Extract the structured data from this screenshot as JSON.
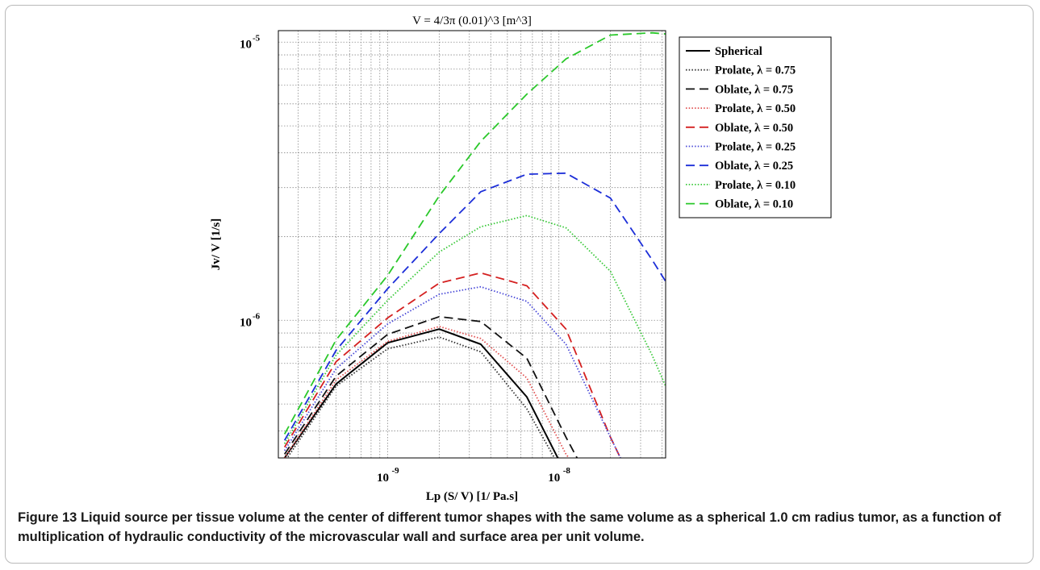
{
  "chart_data": {
    "type": "line",
    "title": "V = 4/3π (0.01)^3 [m^3]",
    "xlabel": "Lp (S/ V) [1/ Pa.s]",
    "ylabel": "Jv/ V [1/s]",
    "xscale": "log",
    "yscale": "log",
    "xlim": [
      2.3e-10,
      4.2e-08
    ],
    "ylim": [
      3.2e-07,
      1.1e-05
    ],
    "grid": true,
    "legend_position": "right",
    "x_ticks": [
      {
        "value": 1e-09,
        "label": "10",
        "exp": "-9"
      },
      {
        "value": 1e-08,
        "label": "10",
        "exp": "-8"
      }
    ],
    "y_ticks": [
      {
        "value": 1e-06,
        "label": "10",
        "exp": "-6"
      },
      {
        "value": 1e-05,
        "label": "10",
        "exp": "-5"
      }
    ],
    "x": [
      2.5e-10,
      5e-10,
      1e-09,
      2e-09,
      3.5e-09,
      6.5e-09,
      1.1e-08,
      2e-08,
      3.5e-08,
      4.2e-08
    ],
    "series": [
      {
        "name": "Spherical",
        "color": "#000000",
        "dash": "solid",
        "values": [
          3.2e-07,
          5.9e-07,
          8.3e-07,
          9.3e-07,
          8.2e-07,
          5.3e-07,
          2.8e-07,
          null,
          null,
          null
        ]
      },
      {
        "name": "Prolate, λ = 0.75",
        "color": "#333333",
        "dash": "dotted",
        "values": [
          3.1e-07,
          5.8e-07,
          7.9e-07,
          8.7e-07,
          7.7e-07,
          4.8e-07,
          2.7e-07,
          null,
          null,
          null
        ]
      },
      {
        "name": "Oblate, λ = 0.75",
        "color": "#111111",
        "dash": "dashed",
        "values": [
          3.3e-07,
          6.3e-07,
          8.9e-07,
          1.03e-06,
          9.9e-07,
          7.3e-07,
          3.8e-07,
          null,
          null,
          null
        ]
      },
      {
        "name": "Prolate, λ = 0.50",
        "color": "#e05050",
        "dash": "dotted",
        "values": [
          3.2e-07,
          6.1e-07,
          8.4e-07,
          9.5e-07,
          8.6e-07,
          6.2e-07,
          3.3e-07,
          null,
          null,
          null
        ]
      },
      {
        "name": "Oblate, λ = 0.50",
        "color": "#d42020",
        "dash": "dashed",
        "values": [
          3.5e-07,
          7.1e-07,
          1.02e-06,
          1.36e-06,
          1.48e-06,
          1.33e-06,
          9.3e-07,
          3.8e-07,
          null,
          null
        ]
      },
      {
        "name": "Prolate, λ = 0.25",
        "color": "#4a4ad8",
        "dash": "dotted",
        "values": [
          3.4e-07,
          6.7e-07,
          9.7e-07,
          1.24e-06,
          1.32e-06,
          1.17e-06,
          8.2e-07,
          3.8e-07,
          null,
          null
        ]
      },
      {
        "name": "Oblate, λ = 0.25",
        "color": "#1c2ed8",
        "dash": "dashed",
        "values": [
          3.7e-07,
          7.8e-07,
          1.3e-06,
          2.05e-06,
          2.9e-06,
          3.35e-06,
          3.38e-06,
          2.75e-06,
          1.65e-06,
          1.38e-06
        ]
      },
      {
        "name": "Prolate, λ = 0.10",
        "color": "#38c838",
        "dash": "dotted",
        "values": [
          3.6e-07,
          7.5e-07,
          1.18e-06,
          1.76e-06,
          2.17e-06,
          2.38e-06,
          2.15e-06,
          1.5e-06,
          7.5e-07,
          5.8e-07
        ]
      },
      {
        "name": "Oblate, λ = 0.10",
        "color": "#2ac82a",
        "dash": "dashed",
        "values": [
          3.9e-07,
          8.5e-07,
          1.45e-06,
          2.8e-06,
          4.4e-06,
          6.5e-06,
          8.7e-06,
          1.06e-05,
          1.08e-05,
          1.07e-05
        ]
      }
    ]
  },
  "caption": {
    "figure_label": "Figure 13",
    "text": " Liquid source per tissue volume at the center of different tumor shapes with the same volume as a spherical 1.0 cm radius tumor, as a function of multiplication of hydraulic conductivity of the microvascular wall and surface area per unit volume."
  }
}
